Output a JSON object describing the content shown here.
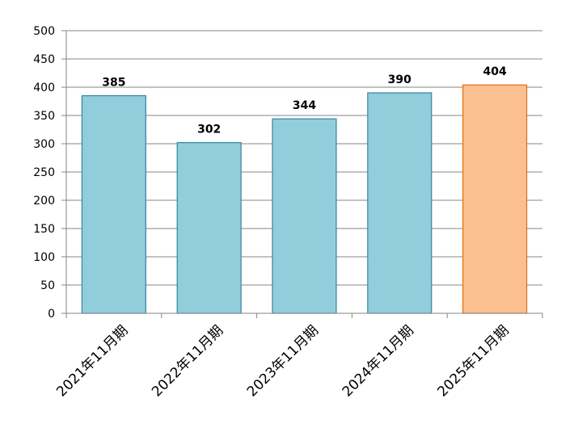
{
  "chart_data": {
    "type": "bar",
    "categories": [
      "2021年11月期",
      "2022年11月期",
      "2023年11月期",
      "2024年11月期",
      "2025年11月期"
    ],
    "values": [
      385,
      302,
      344,
      390,
      404
    ],
    "data_labels": [
      "385",
      "302",
      "344",
      "390",
      "404"
    ],
    "title": "",
    "xlabel": "",
    "ylabel": "",
    "ylim": [
      0,
      500
    ],
    "yticks": [
      0,
      50,
      100,
      150,
      200,
      250,
      300,
      350,
      400,
      450,
      500
    ],
    "grid": true,
    "legend": "none",
    "colors": {
      "bar_fill": "#92CDDC",
      "bar_stroke": "#31859C",
      "highlight_fill": "#FAC090",
      "highlight_stroke": "#E46C0A",
      "grid": "#868686",
      "axis": "#868686"
    },
    "highlight_index": 4
  }
}
